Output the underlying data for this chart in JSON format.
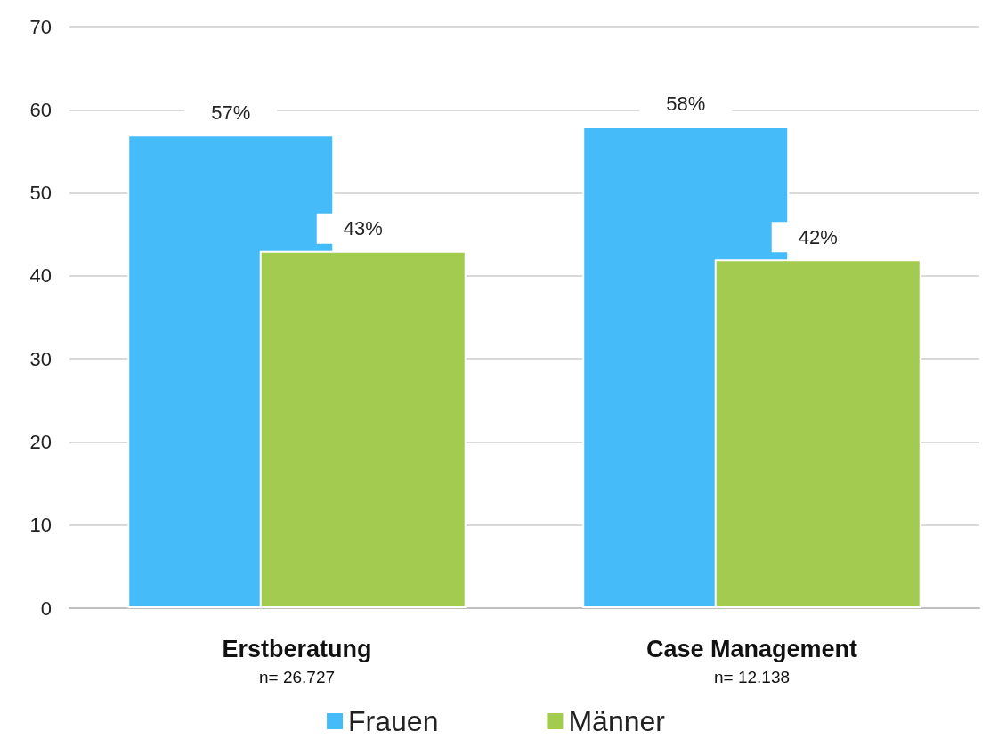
{
  "chart_data": {
    "type": "bar",
    "categories": [
      "Erstberatung\nn= 26.727",
      "Case Management\nn= 12.138"
    ],
    "series": [
      {
        "name": "Frauen",
        "color": "#45bbf9",
        "values": [
          57,
          58
        ],
        "value_labels": [
          "57%",
          "58%"
        ]
      },
      {
        "name": "Männer",
        "color": "#a3cb4f",
        "values": [
          43,
          42
        ],
        "value_labels": [
          "43%",
          "42%"
        ]
      }
    ],
    "ylim": [
      0,
      70
    ],
    "yticks": [
      0,
      10,
      20,
      30,
      40,
      50,
      60,
      70
    ],
    "grid": "y",
    "legend": "bottom"
  }
}
